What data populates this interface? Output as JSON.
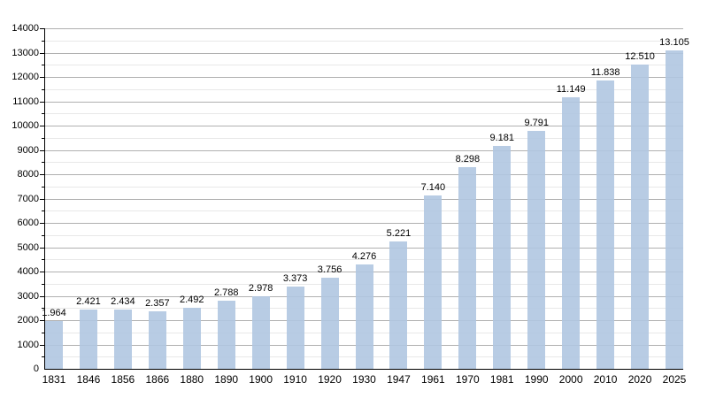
{
  "chart_data": {
    "type": "bar",
    "title": "",
    "xlabel": "",
    "ylabel": "",
    "categories": [
      "1831",
      "1846",
      "1856",
      "1866",
      "1880",
      "1890",
      "1900",
      "1910",
      "1920",
      "1930",
      "1947",
      "1961",
      "1970",
      "1981",
      "1990",
      "2000",
      "2010",
      "2020",
      "2025"
    ],
    "values": [
      1964,
      2421,
      2434,
      2357,
      2492,
      2788,
      2978,
      3373,
      3756,
      4276,
      5221,
      7140,
      8298,
      9181,
      9791,
      11149,
      11838,
      12510,
      13105
    ],
    "value_labels": [
      "1.964",
      "2.421",
      "2.434",
      "2.357",
      "2.492",
      "2.788",
      "2.978",
      "3.373",
      "3.756",
      "4.276",
      "5.221",
      "7.140",
      "8.298",
      "9.181",
      "9.791",
      "11.149",
      "11.838",
      "12.510",
      "13.105"
    ],
    "ylim": [
      0,
      14000
    ],
    "y_major_step": 1000,
    "y_minor_step": 500,
    "grid": true,
    "legend": false,
    "colors": {
      "bar_fill": "#b8cce4",
      "major_grid": "#b0b0b0",
      "minor_grid": "#e8e8e8",
      "axis": "#000000",
      "text": "#000000",
      "background": "#ffffff"
    }
  }
}
